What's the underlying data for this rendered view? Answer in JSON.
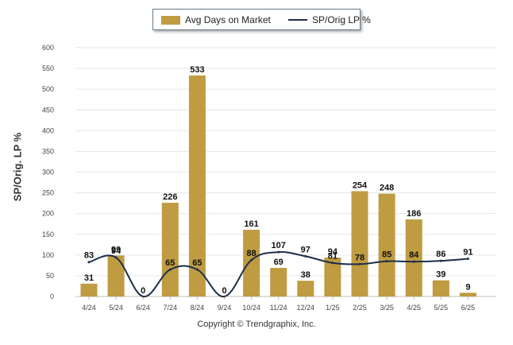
{
  "chart_data": {
    "type": "bar",
    "categories": [
      "4/24",
      "5/24",
      "6/24",
      "7/24",
      "8/24",
      "9/24",
      "10/24",
      "11/24",
      "12/24",
      "1/25",
      "2/25",
      "3/25",
      "4/25",
      "5/25",
      "6/25"
    ],
    "series": [
      {
        "name": "Avg Days on Market",
        "type": "bar",
        "values": [
          31,
          99,
          0,
          226,
          533,
          0,
          161,
          69,
          38,
          94,
          254,
          248,
          186,
          39,
          9
        ],
        "labels": [
          "31",
          "99",
          "0",
          "226",
          "533",
          "0",
          "161",
          "69",
          "38",
          "94",
          "254",
          "248",
          "186",
          "39",
          "9"
        ],
        "color": "#bf9b42"
      },
      {
        "name": "SP/Orig LP %",
        "type": "line",
        "values": [
          83,
          94,
          0,
          65,
          65,
          0,
          88,
          107,
          97,
          81,
          78,
          85,
          84,
          86,
          91
        ],
        "labels": [
          "83",
          "94",
          "0",
          "65",
          "65",
          "0",
          "88",
          "107",
          "97",
          "81",
          "78",
          "85",
          "84",
          "86",
          "91"
        ],
        "color": "#1c2f4a"
      }
    ],
    "ylabel": "SP/Orig. LP %",
    "ylim": [
      0,
      600
    ],
    "yticks": [
      "0",
      "50",
      "100",
      "150",
      "200",
      "250",
      "300",
      "350",
      "400",
      "450",
      "500",
      "550",
      "600"
    ],
    "grid": true,
    "legend_position": "top-center"
  },
  "footer": {
    "copyright": "Copyright © Trendgraphix, Inc."
  }
}
